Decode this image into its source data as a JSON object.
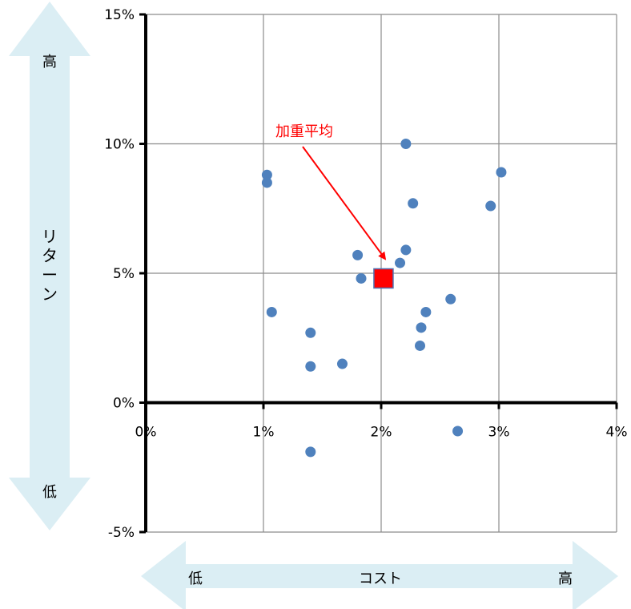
{
  "chart_data": {
    "type": "scatter",
    "xlim": [
      0,
      4
    ],
    "ylim": [
      -5,
      15
    ],
    "x_ticks": [
      0,
      1,
      2,
      3,
      4
    ],
    "y_ticks": [
      -5,
      0,
      5,
      10,
      15
    ],
    "x_tick_labels": [
      "0%",
      "1%",
      "2%",
      "3%",
      "4%"
    ],
    "y_tick_labels": [
      "-5%",
      "0%",
      "5%",
      "10%",
      "15%"
    ],
    "grid": true,
    "series": [
      {
        "marker": "circle",
        "color": "#4f81bd",
        "x": [
          1.03,
          1.03,
          1.07,
          1.4,
          1.4,
          1.4,
          1.67,
          1.8,
          1.83,
          2.16,
          2.21,
          2.21,
          2.27,
          2.33,
          2.34,
          2.38,
          2.59,
          2.65,
          2.93,
          3.02
        ],
        "y": [
          8.8,
          8.5,
          3.5,
          2.7,
          1.4,
          -1.9,
          1.5,
          5.7,
          4.8,
          5.4,
          5.9,
          10.0,
          7.7,
          2.2,
          2.9,
          3.5,
          4.0,
          -1.1,
          7.6,
          8.9
        ]
      },
      {
        "marker": "square",
        "color": "#ff0000",
        "x": [
          2.02
        ],
        "y": [
          4.8
        ]
      }
    ],
    "annotation": {
      "text": "加重平均",
      "color": "#ff0000",
      "target": [
        2.02,
        5.4
      ]
    }
  },
  "axes_labels": {
    "y_arrow_top": "高",
    "y_arrow_title": "リターン",
    "y_arrow_bottom": "低",
    "x_arrow_left": "低",
    "x_arrow_title": "コスト",
    "x_arrow_right": "高"
  },
  "colors": {
    "arrow_fill": "#dbeef4",
    "grid": "#8c8c8c",
    "axis": "#000000"
  }
}
